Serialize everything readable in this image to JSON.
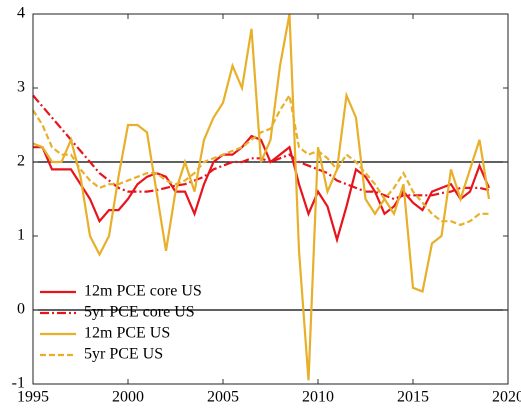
{
  "chart_data": {
    "type": "line",
    "x": [
      1995,
      1995.5,
      1996,
      1996.5,
      1997,
      1997.5,
      1998,
      1998.5,
      1999,
      1999.5,
      2000,
      2000.5,
      2001,
      2001.5,
      2002,
      2002.5,
      2003,
      2003.5,
      2004,
      2004.5,
      2005,
      2005.5,
      2006,
      2006.5,
      2007,
      2007.5,
      2008,
      2008.5,
      2009,
      2009.5,
      2010,
      2010.5,
      2011,
      2011.5,
      2012,
      2012.5,
      2013,
      2013.5,
      2014,
      2014.5,
      2015,
      2015.5,
      2016,
      2016.5,
      2017,
      2017.5,
      2018,
      2018.5,
      2019
    ],
    "series": [
      {
        "name": "12m PCE core US",
        "color": "#e8141c",
        "linestyle": "solid",
        "values": [
          2.2,
          2.2,
          1.9,
          1.9,
          1.9,
          1.7,
          1.5,
          1.2,
          1.35,
          1.35,
          1.5,
          1.7,
          1.8,
          1.85,
          1.8,
          1.6,
          1.6,
          1.3,
          1.7,
          2.0,
          2.1,
          2.1,
          2.2,
          2.35,
          2.3,
          2.0,
          2.1,
          2.2,
          1.7,
          1.3,
          1.6,
          1.4,
          0.95,
          1.4,
          1.9,
          1.8,
          1.6,
          1.3,
          1.4,
          1.6,
          1.45,
          1.35,
          1.6,
          1.65,
          1.7,
          1.5,
          1.6,
          1.95,
          1.65
        ]
      },
      {
        "name": "5yr PCE core US",
        "color": "#e8141c",
        "linestyle": "dashdot",
        "values": [
          2.9,
          2.75,
          2.6,
          2.45,
          2.3,
          2.15,
          2.0,
          1.85,
          1.75,
          1.65,
          1.6,
          1.6,
          1.6,
          1.62,
          1.65,
          1.68,
          1.7,
          1.75,
          1.8,
          1.9,
          1.95,
          2.0,
          2.0,
          2.05,
          2.05,
          2.0,
          2.05,
          2.1,
          2.0,
          1.95,
          1.9,
          1.85,
          1.75,
          1.7,
          1.65,
          1.6,
          1.6,
          1.55,
          1.5,
          1.55,
          1.55,
          1.55,
          1.55,
          1.58,
          1.6,
          1.65,
          1.65,
          1.65,
          1.62
        ]
      },
      {
        "name": "12m PCE US",
        "color": "#e8b02a",
        "linestyle": "solid",
        "values": [
          2.25,
          2.2,
          2.0,
          2.0,
          2.3,
          1.8,
          1.0,
          0.75,
          1.0,
          1.8,
          2.5,
          2.5,
          2.4,
          1.6,
          0.8,
          1.6,
          2.0,
          1.6,
          2.3,
          2.6,
          2.8,
          3.3,
          3.0,
          3.8,
          2.0,
          2.3,
          3.3,
          4.0,
          0.8,
          -0.95,
          2.2,
          1.6,
          1.9,
          2.9,
          2.6,
          1.5,
          1.3,
          1.5,
          1.3,
          1.7,
          0.3,
          0.25,
          0.9,
          1.0,
          1.9,
          1.5,
          1.9,
          2.3,
          1.5
        ]
      },
      {
        "name": "5yr PCE US",
        "color": "#e8b02a",
        "linestyle": "dashed",
        "values": [
          2.7,
          2.5,
          2.2,
          2.1,
          2.1,
          1.9,
          1.75,
          1.65,
          1.7,
          1.7,
          1.75,
          1.8,
          1.85,
          1.85,
          1.75,
          1.7,
          1.75,
          1.85,
          2.0,
          2.05,
          2.1,
          2.15,
          2.2,
          2.3,
          2.4,
          2.45,
          2.7,
          2.9,
          2.2,
          2.1,
          2.15,
          2.05,
          1.9,
          2.1,
          2.0,
          1.85,
          1.7,
          1.5,
          1.65,
          1.85,
          1.6,
          1.45,
          1.3,
          1.2,
          1.2,
          1.15,
          1.2,
          1.3,
          1.3
        ]
      }
    ],
    "reference_lines": [
      2,
      0
    ],
    "xlim": [
      1995,
      2020
    ],
    "xticks": [
      1995,
      2000,
      2005,
      2010,
      2015,
      2020
    ],
    "ylim": [
      -1,
      4
    ],
    "yticks": [
      -1,
      0,
      1,
      2,
      3,
      4
    ],
    "legend": "lower left"
  }
}
